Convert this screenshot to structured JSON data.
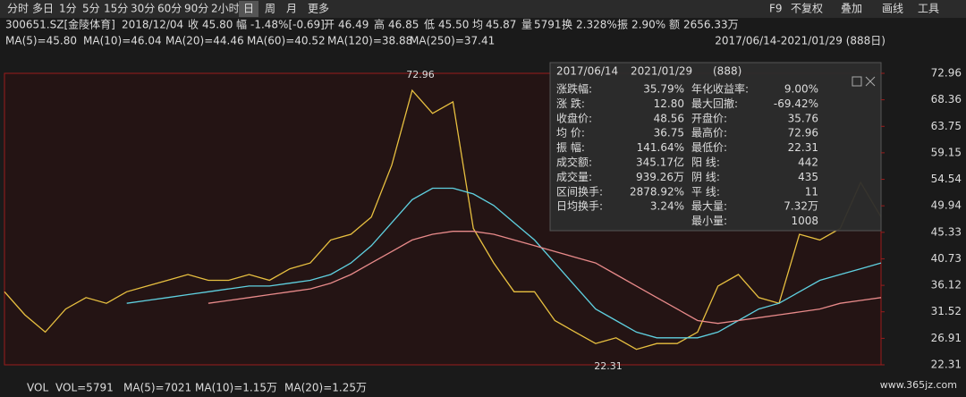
{
  "toolbar": {
    "periods": [
      "分时",
      "多日",
      "1分",
      "5分",
      "15分",
      "30分",
      "60分",
      "90分",
      "2小时",
      "日",
      "周",
      "月",
      "更多"
    ],
    "tools": [
      "F9",
      "不复权",
      "叠加",
      "画线",
      "工具"
    ]
  },
  "quote": {
    "code": "300651.SZ[金陵体育]",
    "date": "2018/12/04",
    "fields": [
      {
        "label": "收",
        "value": "45.80",
        "color": "#3dbf3d"
      },
      {
        "label": "幅",
        "value": "-1.48%[-0.69]",
        "color": "#3dbf3d"
      },
      {
        "label": "开",
        "value": "46.49",
        "color": "#dddddd"
      },
      {
        "label": "高",
        "value": "46.85",
        "color": "#e8403c"
      },
      {
        "label": "低",
        "value": "45.50",
        "color": "#3dbf3d"
      },
      {
        "label": "均",
        "value": "45.87",
        "color": "#3dbf3d"
      },
      {
        "label": "量",
        "value": "5791",
        "color": "#dddddd"
      },
      {
        "label": "换",
        "value": "2.328%",
        "color": "#dddddd"
      },
      {
        "label": "振",
        "value": "2.90%",
        "color": "#dddddd"
      },
      {
        "label": "额",
        "value": "2656.33万",
        "color": "#dddddd"
      }
    ]
  },
  "indicators": {
    "ma": [
      {
        "label": "MA(5)=45.80",
        "color": "#f0922c"
      },
      {
        "label": "MA(10)=46.04",
        "color": "#f2e14a"
      },
      {
        "label": "MA(20)=44.46",
        "color": "#e040e0"
      },
      {
        "label": "MA(60)=40.52",
        "color": "#3fae3f"
      },
      {
        "label": "MA(120)=38.88",
        "color": "#5fd0e0"
      },
      {
        "label": "MA(250)=37.41",
        "color": "#e88a8a"
      }
    ],
    "range": "2017/06/14-2021/01/29 (888日)"
  },
  "stats": {
    "start": "2017/06/14",
    "end": "2021/01/29",
    "count": "(888)",
    "left": [
      {
        "label": "涨跌幅:",
        "value": "35.79%",
        "color": "#e8403c"
      },
      {
        "label": "涨  跌:",
        "value": "12.80",
        "color": "#e8403c"
      },
      {
        "label": "收盘价:",
        "value": "48.56",
        "color": "#e8403c"
      },
      {
        "label": "均  价:",
        "value": "36.75",
        "color": "#e8403c"
      },
      {
        "label": "振  幅:",
        "value": "141.64%",
        "color": "#e8403c"
      },
      {
        "label": "成交额:",
        "value": "345.17亿",
        "color": "#dddddd"
      },
      {
        "label": "成交量:",
        "value": "939.26万",
        "color": "#dddddd"
      },
      {
        "label": "区间换手:",
        "value": "2878.92%",
        "color": "#dddddd"
      },
      {
        "label": "日均换手:",
        "value": "3.24%",
        "color": "#dddddd"
      }
    ],
    "right": [
      {
        "label": "年化收益率:",
        "value": "9.00%",
        "color": "#e8403c"
      },
      {
        "label": "最大回撤:",
        "value": "-69.42%",
        "color": "#3dbf3d"
      },
      {
        "label": "开盘价:",
        "value": "35.76",
        "color": "#e8403c"
      },
      {
        "label": "最高价:",
        "value": "72.96",
        "color": "#e8403c"
      },
      {
        "label": "最低价:",
        "value": "22.31",
        "color": "#e8403c"
      },
      {
        "label": "阳  线:",
        "value": "442",
        "color": "#e8403c"
      },
      {
        "label": "阴  线:",
        "value": "435",
        "color": "#3dbf3d"
      },
      {
        "label": "平  线:",
        "value": "11",
        "color": "#dddddd"
      },
      {
        "label": "最大量:",
        "value": "7.32万",
        "color": "#dddddd"
      },
      {
        "label": "最小量:",
        "value": "1008",
        "color": "#dddddd"
      }
    ]
  },
  "chart_data": {
    "type": "line",
    "ylim": [
      22.31,
      72.96
    ],
    "yticks": [
      72.96,
      68.36,
      63.75,
      59.15,
      54.54,
      49.94,
      45.33,
      40.73,
      36.12,
      31.52,
      26.91,
      22.31
    ],
    "max_label": "72.96",
    "min_label": "22.31",
    "series": [
      {
        "color": "#e8c040",
        "values": [
          35,
          31,
          28,
          32,
          34,
          33,
          35,
          36,
          37,
          38,
          37,
          37,
          38,
          37,
          39,
          40,
          44,
          45,
          48,
          57,
          70,
          66,
          68,
          46,
          40,
          35,
          35,
          30,
          28,
          26,
          27,
          25,
          26,
          26,
          28,
          36,
          38,
          34,
          33,
          45,
          44,
          46,
          54,
          48
        ]
      },
      {
        "color": "#5fd0e0",
        "values": [
          null,
          null,
          null,
          null,
          null,
          null,
          33,
          33.5,
          34,
          34.5,
          35,
          35.5,
          36,
          36,
          36.5,
          37,
          38,
          40,
          43,
          47,
          51,
          53,
          53,
          52,
          50,
          47,
          44,
          40,
          36,
          32,
          30,
          28,
          27,
          27,
          27,
          28,
          30,
          32,
          33,
          35,
          37,
          38,
          39,
          40
        ]
      },
      {
        "color": "#e88a8a",
        "values": [
          null,
          null,
          null,
          null,
          null,
          null,
          null,
          null,
          null,
          null,
          33,
          33.5,
          34,
          34.5,
          35,
          35.5,
          36.5,
          38,
          40,
          42,
          44,
          45,
          45.5,
          45.5,
          45,
          44,
          43,
          42,
          41,
          40,
          38,
          36,
          34,
          32,
          30,
          29.5,
          30,
          30.5,
          31,
          31.5,
          32,
          33,
          33.5,
          34
        ]
      }
    ]
  },
  "volume": {
    "items": [
      {
        "label": "VOL",
        "color": "#dddddd"
      },
      {
        "label": "VOL=5791",
        "color": "#dddddd"
      },
      {
        "label": "MA(5)=7021",
        "color": "#dddddd"
      },
      {
        "label": "MA(10)=1.15万",
        "color": "#f2e14a"
      },
      {
        "label": "MA(20)=1.25万",
        "color": "#e040e0"
      }
    ]
  },
  "watermark": "www.365jz.com"
}
